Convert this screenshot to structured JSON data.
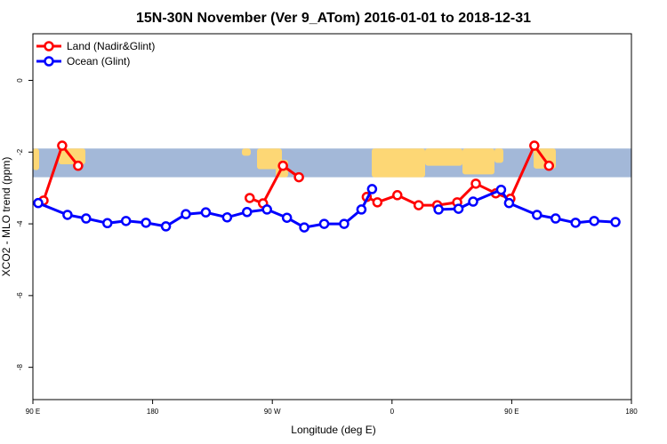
{
  "chart_data": {
    "type": "line",
    "title": "15N-30N November (Ver 9_ATom)   2016-01-01 to 2018-12-31",
    "xlabel": "Longitude (deg E)",
    "ylabel": "XCO2 - MLO trend (ppm)",
    "xlim": [
      90,
      540
    ],
    "ylim": [
      -8.9,
      1.3
    ],
    "x_ticks": [
      {
        "value": 90,
        "label": "90 E"
      },
      {
        "value": 180,
        "label": "180"
      },
      {
        "value": 270,
        "label": "90 W"
      },
      {
        "value": 360,
        "label": "0"
      },
      {
        "value": 450,
        "label": "90 E"
      },
      {
        "value": 540,
        "label": "180"
      }
    ],
    "y_ticks": [
      {
        "value": 0,
        "label": "0"
      },
      {
        "value": -2,
        "label": "-2"
      },
      {
        "value": -4,
        "label": "-4"
      },
      {
        "value": -6,
        "label": "-6"
      },
      {
        "value": -8,
        "label": "-8"
      }
    ],
    "map_band": {
      "lat_range": "15N-30N",
      "y_top": -1.9,
      "y_bottom": -2.7,
      "ocean_color": "#a3b8d8",
      "land_color": "#fdd775"
    },
    "legend": {
      "position": "top-left"
    },
    "series": [
      {
        "name": "Land (Nadir&Glint)",
        "color": "#ff0000",
        "segments": [
          [
            [
              98,
              -3.35
            ],
            [
              112,
              -1.82
            ],
            [
              124,
              -2.38
            ]
          ],
          [
            [
              253,
              -3.28
            ],
            [
              263,
              -3.43
            ],
            [
              278,
              -2.38
            ],
            [
              290,
              -2.7
            ]
          ],
          [
            [
              341,
              -3.25
            ],
            [
              349,
              -3.4
            ],
            [
              364,
              -3.2
            ],
            [
              380,
              -3.48
            ],
            [
              394,
              -3.48
            ],
            [
              409,
              -3.4
            ],
            [
              423,
              -2.88
            ],
            [
              438,
              -3.15
            ],
            [
              449,
              -3.3
            ],
            [
              467,
              -1.82
            ],
            [
              478,
              -2.38
            ]
          ]
        ]
      },
      {
        "name": "Ocean (Glint)",
        "color": "#0000ff",
        "segments": [
          [
            [
              94,
              -3.42
            ],
            [
              116,
              -3.75
            ],
            [
              130,
              -3.85
            ],
            [
              146,
              -3.98
            ],
            [
              160,
              -3.92
            ],
            [
              175,
              -3.97
            ],
            [
              190,
              -4.07
            ],
            [
              205,
              -3.73
            ],
            [
              220,
              -3.68
            ],
            [
              236,
              -3.82
            ],
            [
              251,
              -3.67
            ],
            [
              266,
              -3.6
            ],
            [
              281,
              -3.83
            ],
            [
              294,
              -4.1
            ],
            [
              309,
              -4.0
            ],
            [
              324,
              -4.0
            ],
            [
              337,
              -3.6
            ],
            [
              345,
              -3.03
            ]
          ],
          [
            [
              395,
              -3.6
            ],
            [
              410,
              -3.58
            ],
            [
              421,
              -3.38
            ],
            [
              442,
              -3.05
            ],
            [
              448,
              -3.42
            ],
            [
              469,
              -3.75
            ],
            [
              483,
              -3.85
            ],
            [
              498,
              -3.97
            ],
            [
              512,
              -3.92
            ],
            [
              528,
              -3.95
            ]
          ]
        ]
      }
    ]
  }
}
